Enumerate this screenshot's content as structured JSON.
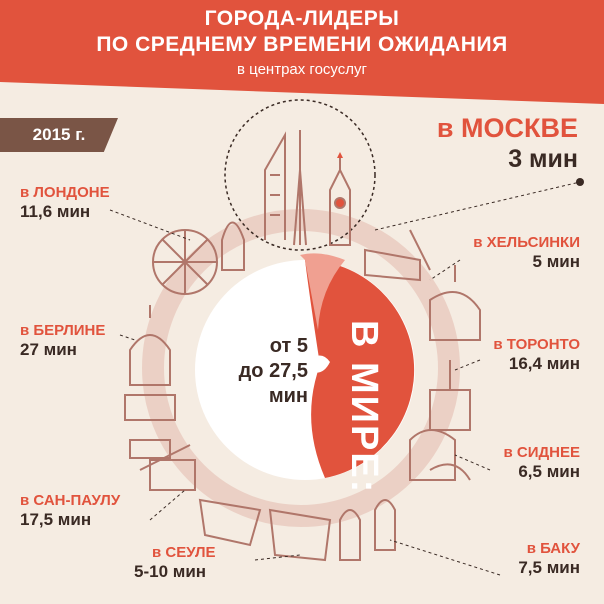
{
  "header": {
    "title_line1": "ГОРОДА-ЛИДЕРЫ",
    "title_line2": "ПО СРЕДНЕМУ ВРЕМЕНИ ОЖИДАНИЯ",
    "subtitle": "в центрах госуслуг"
  },
  "year": "2015 г.",
  "moscow": {
    "name": "в МОСКВЕ",
    "value": "3 мин"
  },
  "cities": [
    {
      "name": "в ЛОНДОНЕ",
      "value": "11,6 мин"
    },
    {
      "name": "в БЕРЛИНЕ",
      "value": "27 мин"
    },
    {
      "name": "в САН-ПАУЛУ",
      "value": "17,5 мин"
    },
    {
      "name": "в СЕУЛЕ",
      "value": "5-10 мин"
    },
    {
      "name": "в ХЕЛЬСИНКИ",
      "value": "5 мин"
    },
    {
      "name": "в ТОРОНТО",
      "value": "16,4 мин"
    },
    {
      "name": "в СИДНЕЕ",
      "value": "6,5 мин"
    },
    {
      "name": "в БАКУ",
      "value": "7,5 мин"
    }
  ],
  "center": {
    "from": "от 5",
    "to": "до 27,5",
    "unit": "мин"
  },
  "world_label": "В МИРЕ:",
  "colors": {
    "accent": "#e1533d",
    "accent_light": "#f0a091",
    "brown": "#7a5546",
    "background": "#f5ece2",
    "outline": "#b0766a"
  }
}
